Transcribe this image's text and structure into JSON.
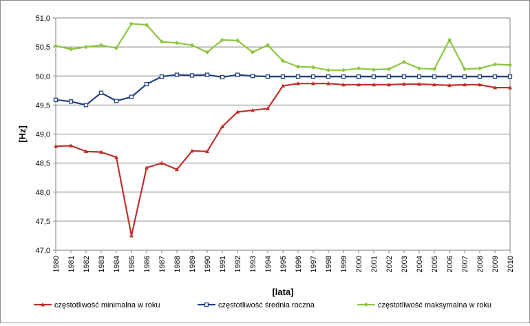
{
  "chart_data": {
    "type": "line",
    "title": "",
    "xlabel": "[lata]",
    "ylabel": "[Hz]",
    "ylim": [
      47.0,
      51.0
    ],
    "yticks": [
      "47,0",
      "47,5",
      "48,0",
      "48,5",
      "49,0",
      "49,5",
      "50,0",
      "50,5",
      "51,0"
    ],
    "x": [
      "1980",
      "1981",
      "1982",
      "1983",
      "1984",
      "1985",
      "1986",
      "1987",
      "1988",
      "1989",
      "1990",
      "1991",
      "1992",
      "1993",
      "1994",
      "1995",
      "1996",
      "1997",
      "1998",
      "1999",
      "2000",
      "2001",
      "2002",
      "2003",
      "2004",
      "2005",
      "2006",
      "2007",
      "2008",
      "2009",
      "2010"
    ],
    "grid": "horizontal",
    "legend_position": "bottom",
    "series": [
      {
        "name": "częstotliwość minimalna w roku",
        "color": "#c0302c",
        "marker": "triangle",
        "values": [
          48.79,
          48.8,
          48.7,
          48.69,
          48.6,
          47.25,
          48.42,
          48.5,
          48.39,
          48.71,
          48.7,
          49.13,
          49.38,
          49.41,
          49.44,
          49.83,
          49.87,
          49.87,
          49.87,
          49.85,
          49.85,
          49.85,
          49.85,
          49.86,
          49.86,
          49.85,
          49.84,
          49.85,
          49.85,
          49.8,
          49.8
        ]
      },
      {
        "name": "częstotliwość średnia  roczna",
        "color": "#1f3f7f",
        "marker": "square",
        "values": [
          49.59,
          49.56,
          49.5,
          49.71,
          49.57,
          49.64,
          49.86,
          49.99,
          50.02,
          50.01,
          50.02,
          49.98,
          50.02,
          50.0,
          49.99,
          49.99,
          49.99,
          49.99,
          49.99,
          49.99,
          49.99,
          49.99,
          49.99,
          49.99,
          49.99,
          49.99,
          49.99,
          49.99,
          49.99,
          49.99,
          49.99
        ]
      },
      {
        "name": "częstotliwość maksymalna w roku",
        "color": "#8cc63f",
        "marker": "diamond",
        "values": [
          50.52,
          50.46,
          50.5,
          50.53,
          50.48,
          50.9,
          50.88,
          50.59,
          50.57,
          50.53,
          50.41,
          50.62,
          50.61,
          50.41,
          50.53,
          50.26,
          50.16,
          50.15,
          50.1,
          50.1,
          50.13,
          50.11,
          50.12,
          50.24,
          50.13,
          50.12,
          50.62,
          50.12,
          50.13,
          50.2,
          50.19
        ]
      }
    ]
  }
}
